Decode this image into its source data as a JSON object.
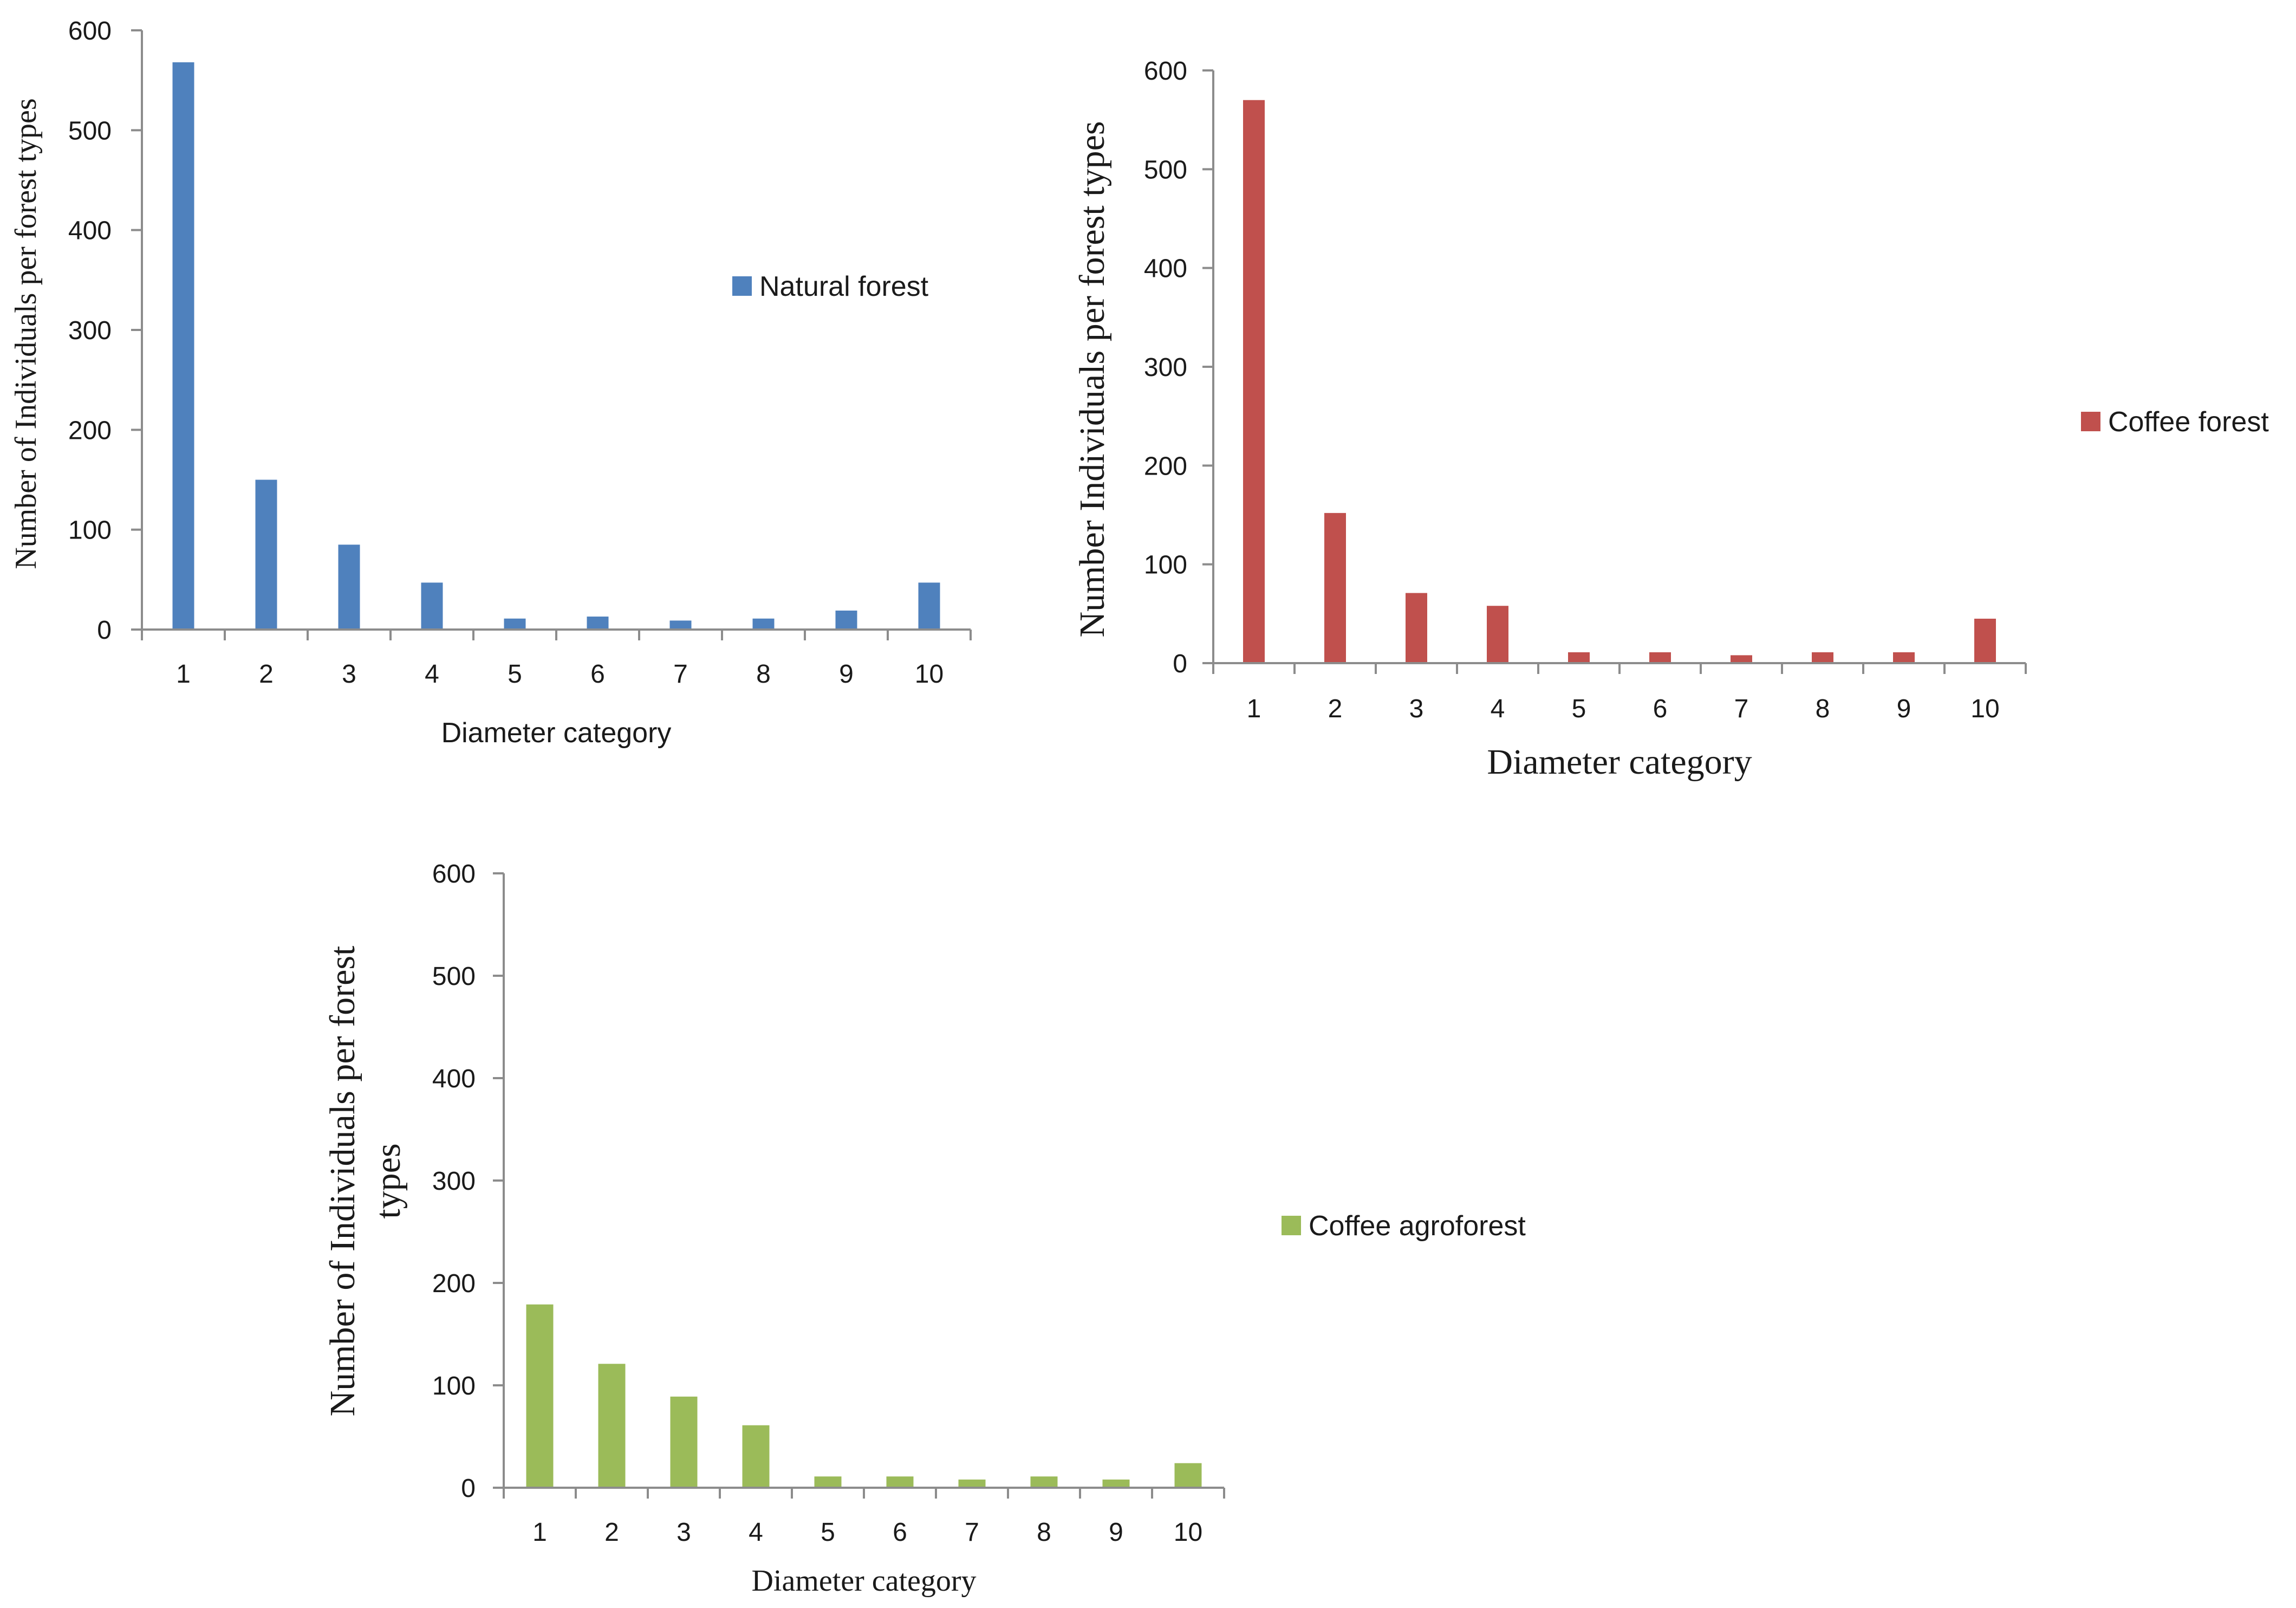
{
  "chart_data": [
    {
      "type": "bar",
      "categories": [
        "1",
        "2",
        "3",
        "4",
        "5",
        "6",
        "7",
        "8",
        "9",
        "10"
      ],
      "series": [
        {
          "name": "Natural forest",
          "values": [
            568,
            150,
            85,
            47,
            11,
            13,
            9,
            11,
            19,
            47
          ]
        }
      ],
      "xlabel": "Diameter category",
      "ylabel": "Number of Individuals per forest types",
      "ylim": [
        0,
        600
      ],
      "yticks": [
        "0",
        "100",
        "200",
        "300",
        "400",
        "500",
        "600"
      ],
      "color": "#4f81bd",
      "legend": "right",
      "grid": false
    },
    {
      "type": "bar",
      "categories": [
        "1",
        "2",
        "3",
        "4",
        "5",
        "6",
        "7",
        "8",
        "9",
        "10"
      ],
      "series": [
        {
          "name": "Coffee forest",
          "values": [
            570,
            152,
            71,
            58,
            11,
            11,
            8,
            11,
            11,
            45
          ]
        }
      ],
      "xlabel": "Diameter category",
      "ylabel": "Number Individuals per forest types",
      "ylim": [
        0,
        600
      ],
      "yticks": [
        "0",
        "100",
        "200",
        "300",
        "400",
        "500",
        "600"
      ],
      "color": "#c0504d",
      "legend": "right",
      "grid": false
    },
    {
      "type": "bar",
      "categories": [
        "1",
        "2",
        "3",
        "4",
        "5",
        "6",
        "7",
        "8",
        "9",
        "10"
      ],
      "series": [
        {
          "name": "Coffee agroforest",
          "values": [
            179,
            121,
            89,
            61,
            11,
            11,
            8,
            11,
            8,
            24
          ]
        }
      ],
      "xlabel": "Diameter category",
      "ylabel": "Number of Individuals per forest types",
      "ylim": [
        0,
        600
      ],
      "yticks": [
        "0",
        "100",
        "200",
        "300",
        "400",
        "500",
        "600"
      ],
      "color": "#9bbb59",
      "legend": "right",
      "grid": false
    }
  ]
}
